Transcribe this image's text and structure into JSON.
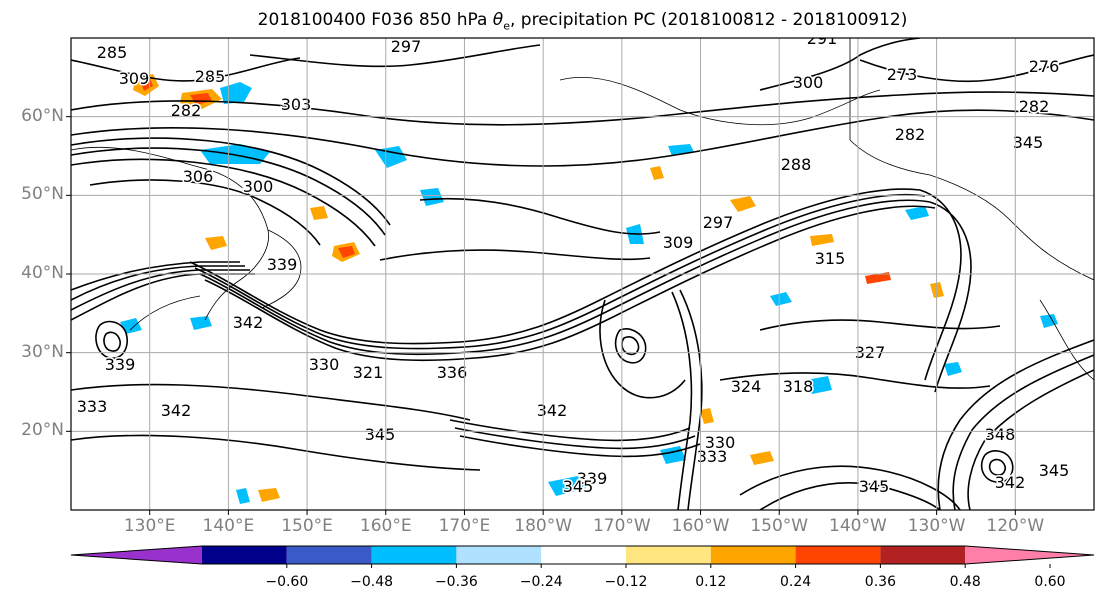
{
  "title": {
    "prefix": "2018100400 F036 850 hPa ",
    "theta_symbol": "θ",
    "theta_subscript": "e",
    "suffix": ", precipitation PC (2018100812 - 2018100912)"
  },
  "map": {
    "projection": "lat-lon",
    "lat_range": [
      10,
      70
    ],
    "lon_range": [
      120,
      250
    ],
    "grid": true,
    "lat_ticks": [
      "20°N",
      "30°N",
      "40°N",
      "50°N",
      "60°N"
    ],
    "lon_ticks": [
      "130°E",
      "140°E",
      "150°E",
      "160°E",
      "170°E",
      "180°W",
      "170°W",
      "160°W",
      "150°W",
      "140°W",
      "130°W",
      "120°W"
    ]
  },
  "contour_labels": [
    "297",
    "291",
    "285",
    "285",
    "282",
    "303",
    "309",
    "306",
    "300",
    "339",
    "342",
    "339",
    "342",
    "333",
    "330",
    "321",
    "336",
    "342",
    "345",
    "339",
    "345",
    "333",
    "330",
    "324",
    "318",
    "327",
    "315",
    "309",
    "297",
    "288",
    "300",
    "282",
    "273",
    "276",
    "282",
    "345",
    "348",
    "342",
    "345",
    "345"
  ],
  "colorbar": {
    "colors": [
      "#9932cc",
      "#00008b",
      "#3a5bc7",
      "#00bfff",
      "#b0e2ff",
      "#ffffff",
      "#ffe680",
      "#ffa500",
      "#ff4500",
      "#b22222",
      "#ff7fa8"
    ],
    "tick_labels": [
      "−0.60",
      "−0.48",
      "−0.36",
      "−0.24",
      "−0.12",
      "0.12",
      "0.24",
      "0.36",
      "0.48",
      "0.60"
    ]
  }
}
